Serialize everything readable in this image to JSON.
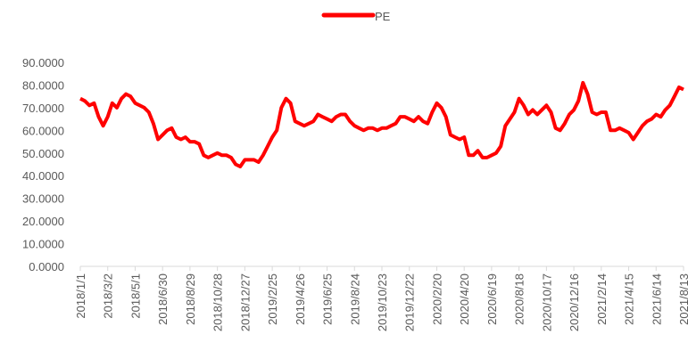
{
  "chart_data": {
    "type": "line",
    "categories": [
      "2018/1/1",
      null,
      null,
      null,
      null,
      null,
      "2018/3/2",
      null,
      null,
      null,
      null,
      null,
      "2018/5/1",
      null,
      null,
      null,
      null,
      null,
      "2018/6/30",
      null,
      null,
      null,
      null,
      null,
      "2018/8/29",
      null,
      null,
      null,
      null,
      null,
      "2018/10/28",
      null,
      null,
      null,
      null,
      null,
      "2018/12/27",
      null,
      null,
      null,
      null,
      null,
      "2019/2/25",
      null,
      null,
      null,
      null,
      null,
      "2019/4/26",
      null,
      null,
      null,
      null,
      null,
      "2019/6/25",
      null,
      null,
      null,
      null,
      null,
      "2019/8/24",
      null,
      null,
      null,
      null,
      null,
      "2019/10/23",
      null,
      null,
      null,
      null,
      null,
      "2019/12/22",
      null,
      null,
      null,
      null,
      null,
      "2020/2/20",
      null,
      null,
      null,
      null,
      null,
      "2020/4/20",
      null,
      null,
      null,
      null,
      null,
      "2020/6/19",
      null,
      null,
      null,
      null,
      null,
      "2020/8/18",
      null,
      null,
      null,
      null,
      null,
      "2020/10/17",
      null,
      null,
      null,
      null,
      null,
      "2020/12/16",
      null,
      null,
      null,
      null,
      null,
      "2021/2/14",
      null,
      null,
      null,
      null,
      null,
      "2021/4/15",
      null,
      null,
      null,
      null,
      null,
      "2021/6/14",
      null,
      null,
      null,
      null,
      null,
      "2021/8/13"
    ],
    "series": [
      {
        "name": "PE",
        "color": "#ff0000",
        "values": [
          74,
          73,
          71,
          72,
          66,
          62,
          66,
          72,
          70,
          74,
          76,
          75,
          72,
          71,
          70,
          68,
          63,
          56,
          58,
          60,
          61,
          57,
          56,
          57,
          55,
          55,
          54,
          49,
          48,
          49,
          50,
          49,
          49,
          48,
          45,
          44,
          47,
          47,
          47,
          46,
          49,
          53,
          57,
          60,
          70,
          74,
          72,
          64,
          63,
          62,
          63,
          64,
          67,
          66,
          65,
          64,
          66,
          67,
          67,
          64,
          62,
          61,
          60,
          61,
          61,
          60,
          61,
          61,
          62,
          63,
          66,
          66,
          65,
          64,
          66,
          64,
          63,
          68,
          72,
          70,
          66,
          58,
          57,
          56,
          57,
          49,
          49,
          51,
          48,
          48,
          49,
          50,
          53,
          62,
          65,
          68,
          74,
          71,
          67,
          69,
          67,
          69,
          71,
          68,
          61,
          60,
          63,
          67,
          69,
          73,
          81,
          76,
          68,
          67,
          68,
          68,
          60,
          60,
          61,
          60,
          59,
          56,
          59,
          62,
          64,
          65,
          67,
          66,
          69,
          71,
          75,
          79,
          78
        ]
      }
    ],
    "ylim": [
      0,
      90
    ],
    "yticks": [
      {
        "value": 0,
        "label": "0.0000"
      },
      {
        "value": 10,
        "label": "10.0000"
      },
      {
        "value": 20,
        "label": "20.0000"
      },
      {
        "value": 30,
        "label": "30.0000"
      },
      {
        "value": 40,
        "label": "40.0000"
      },
      {
        "value": 50,
        "label": "50.0000"
      },
      {
        "value": 60,
        "label": "60.0000"
      },
      {
        "value": 70,
        "label": "70.0000"
      },
      {
        "value": 80,
        "label": "80.0000"
      },
      {
        "value": 90,
        "label": "90.0000"
      }
    ],
    "legend": "top"
  }
}
